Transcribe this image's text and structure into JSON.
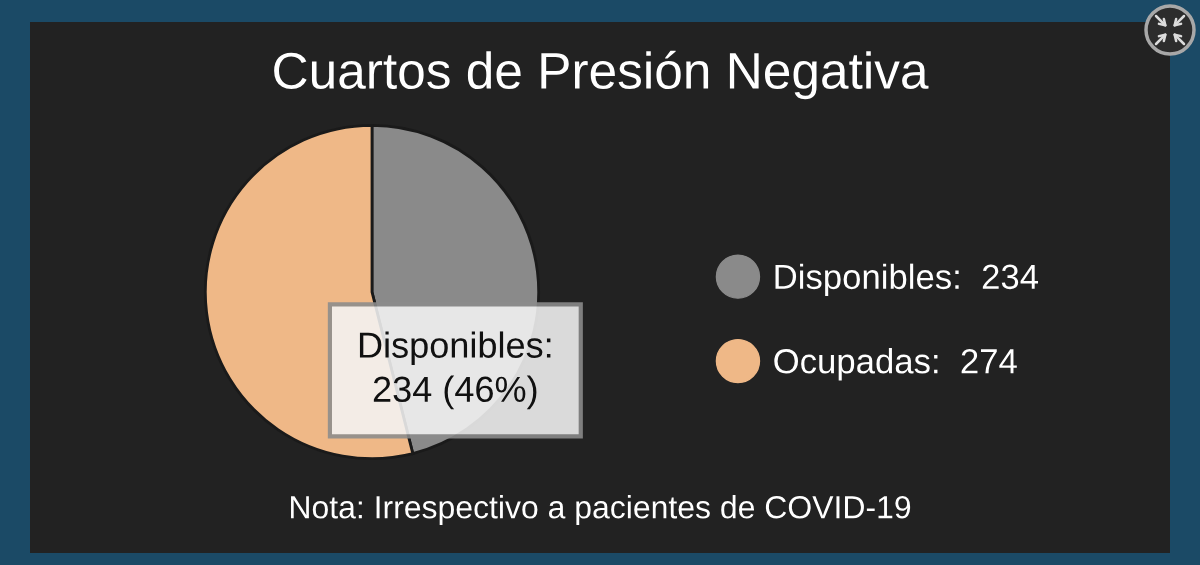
{
  "chart_data": {
    "type": "pie",
    "title": "Cuartos de Presión Negativa",
    "categories": [
      "Disponibles:  234",
      "Ocupadas:  274"
    ],
    "values": [
      234,
      274
    ],
    "colors": [
      "#8a8a8a",
      "#efb887"
    ],
    "legend": "right",
    "annotations": [
      "Disponibles:\n234 (46%)",
      "Nota: Irrespectivo a pacientes de COVID-19"
    ]
  }
}
